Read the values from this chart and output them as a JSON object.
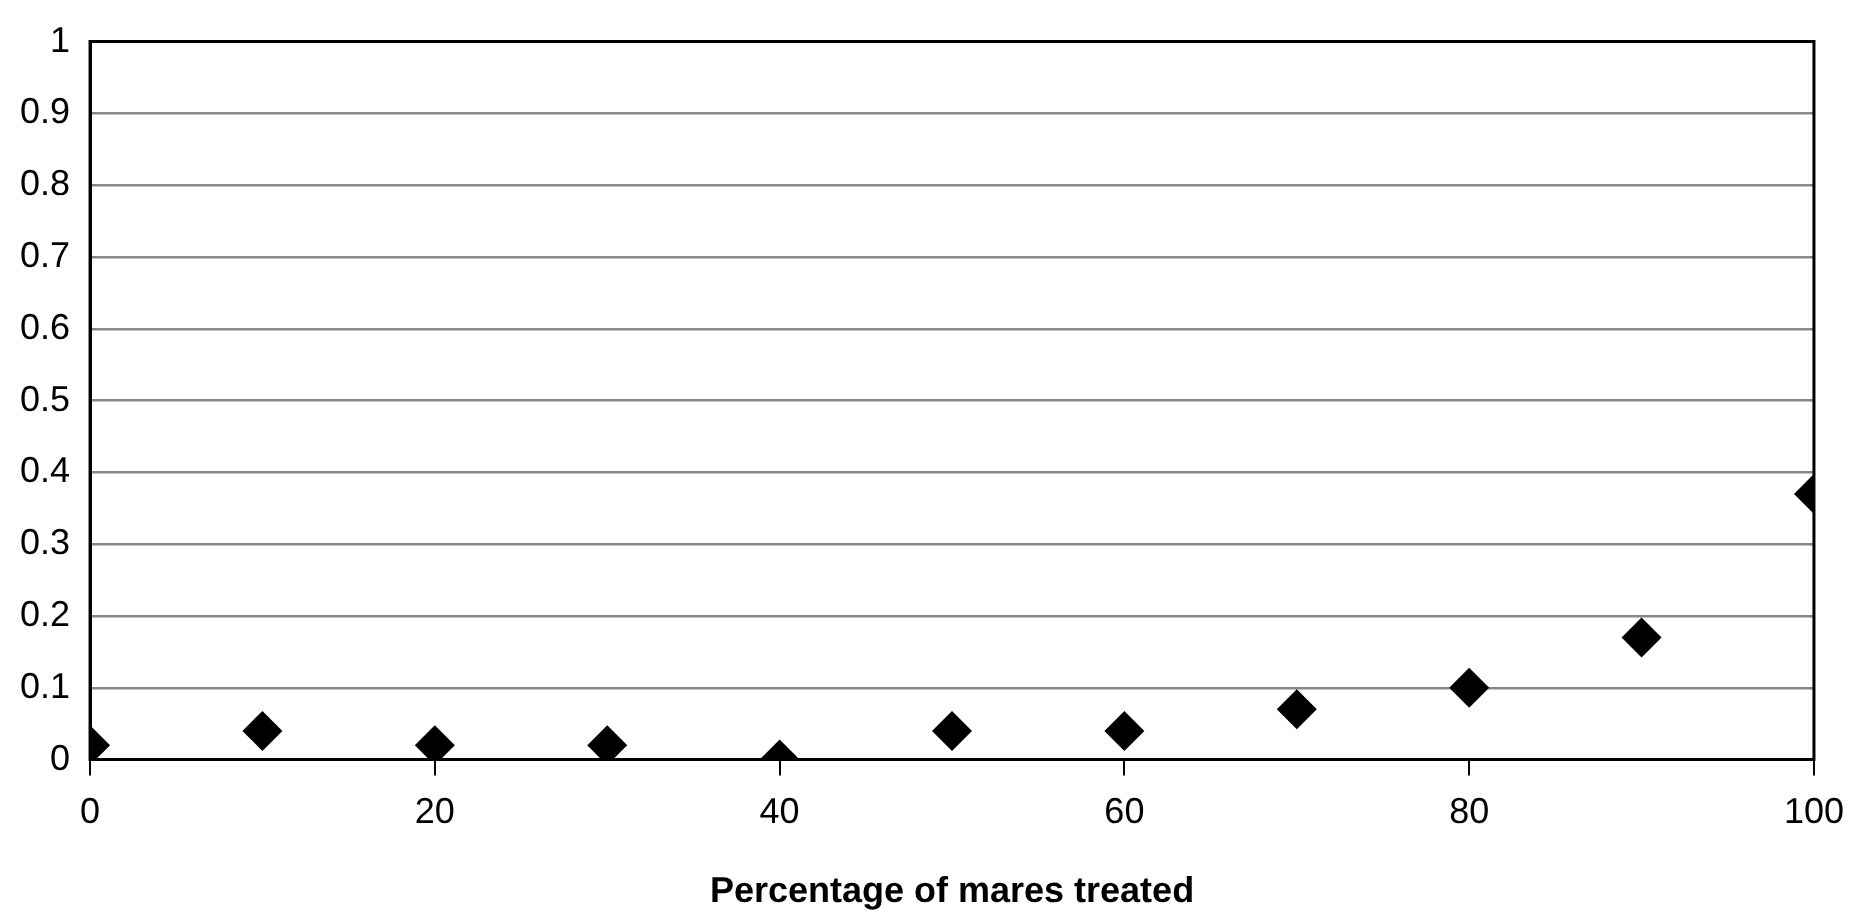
{
  "chart_data": {
    "type": "scatter",
    "xlabel": "Percentage of mares treated",
    "x": [
      0,
      10,
      20,
      30,
      40,
      50,
      60,
      70,
      80,
      90,
      100
    ],
    "values": [
      0.02,
      0.04,
      0.02,
      0.02,
      0,
      0.04,
      0.04,
      0.07,
      0.1,
      0.17,
      0.37
    ],
    "color": "#000000",
    "marker": "diamond",
    "xlim": [
      0,
      100
    ],
    "xticks": [
      0,
      20,
      40,
      60,
      80,
      100
    ],
    "ylim": [
      0,
      1
    ],
    "yticks": [
      0,
      0.1,
      0.2,
      0.3,
      0.4,
      0.5,
      0.6,
      0.7,
      0.8,
      0.9,
      1
    ],
    "grid": "y",
    "legend": false
  }
}
